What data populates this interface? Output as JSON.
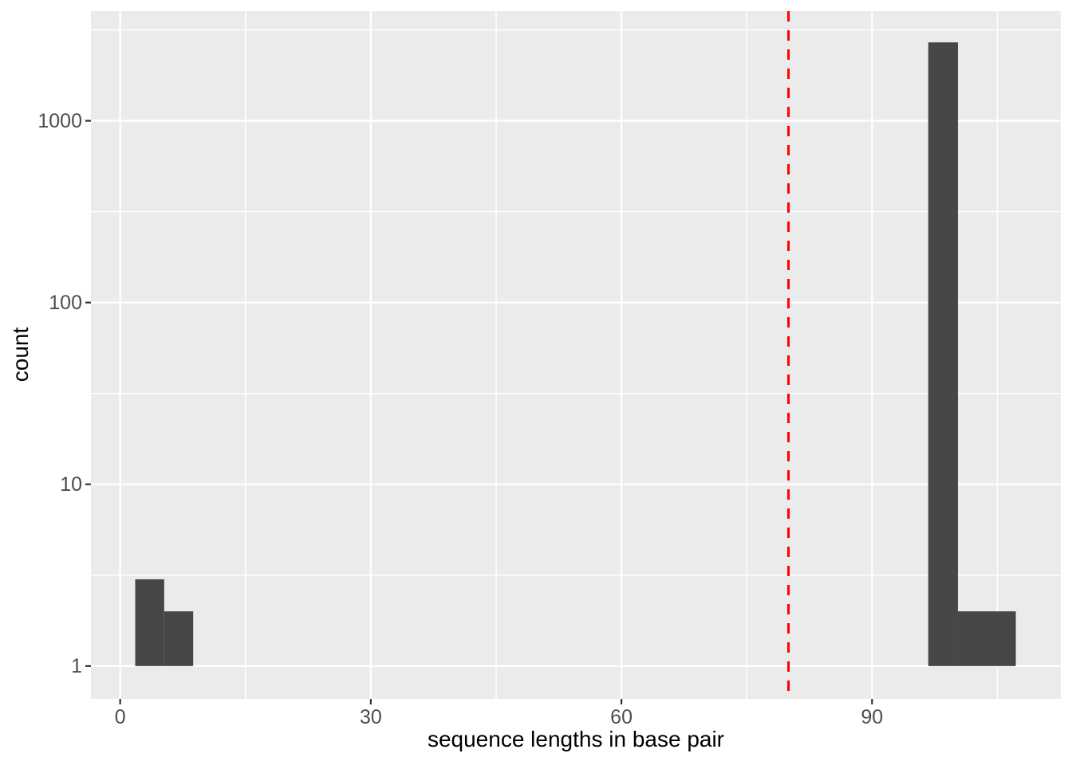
{
  "figure": {
    "background": "#FFFFFF",
    "description": "ggplot2-style histogram of sequence lengths with log10 y axis and red dashed cutoff line"
  },
  "chart_data": {
    "type": "bar",
    "subtype": "histogram",
    "title": "",
    "xlabel": "sequence lengths in base pair",
    "ylabel": "count",
    "x_scale": "linear",
    "y_scale": "log10",
    "xlim": [
      -3.5,
      112.6
    ],
    "ylim": [
      0.66,
      4010
    ],
    "x_major_ticks": [
      0,
      30,
      60,
      90
    ],
    "x_tick_labels": [
      "0",
      "30",
      "60",
      "90"
    ],
    "x_minor_gridlines": [
      15,
      45,
      75,
      105
    ],
    "y_major_ticks": [
      1,
      10,
      100,
      1000
    ],
    "y_tick_labels": [
      "1",
      "10",
      "100",
      "1000"
    ],
    "y_minor_gridlines": [
      3.162,
      31.62,
      316.2,
      3162
    ],
    "binwidth_approx": 3.47,
    "baseline_count": 1,
    "bars": [
      {
        "x_start": 1.8,
        "x_end": 5.27,
        "count": 3
      },
      {
        "x_start": 5.27,
        "x_end": 8.74,
        "count": 2
      },
      {
        "x_start": 96.73,
        "x_end": 100.28,
        "count": 2700
      },
      {
        "x_start": 100.28,
        "x_end": 107.21,
        "count": 2
      }
    ],
    "vline": {
      "x": 80,
      "color": "#FF0000",
      "linetype": "dashed",
      "width": 3,
      "dash": 13,
      "gap": 11
    },
    "grid": "on",
    "legend": "none",
    "colors": {
      "bar_fill": "#474747",
      "panel_background": "#EBEBEB",
      "gridline_major": "#FFFFFF",
      "gridline_minor": "#FFFFFF",
      "tick_mark": "#333333",
      "tick_label": "#4D4D4D",
      "axis_title": "#000000"
    }
  }
}
